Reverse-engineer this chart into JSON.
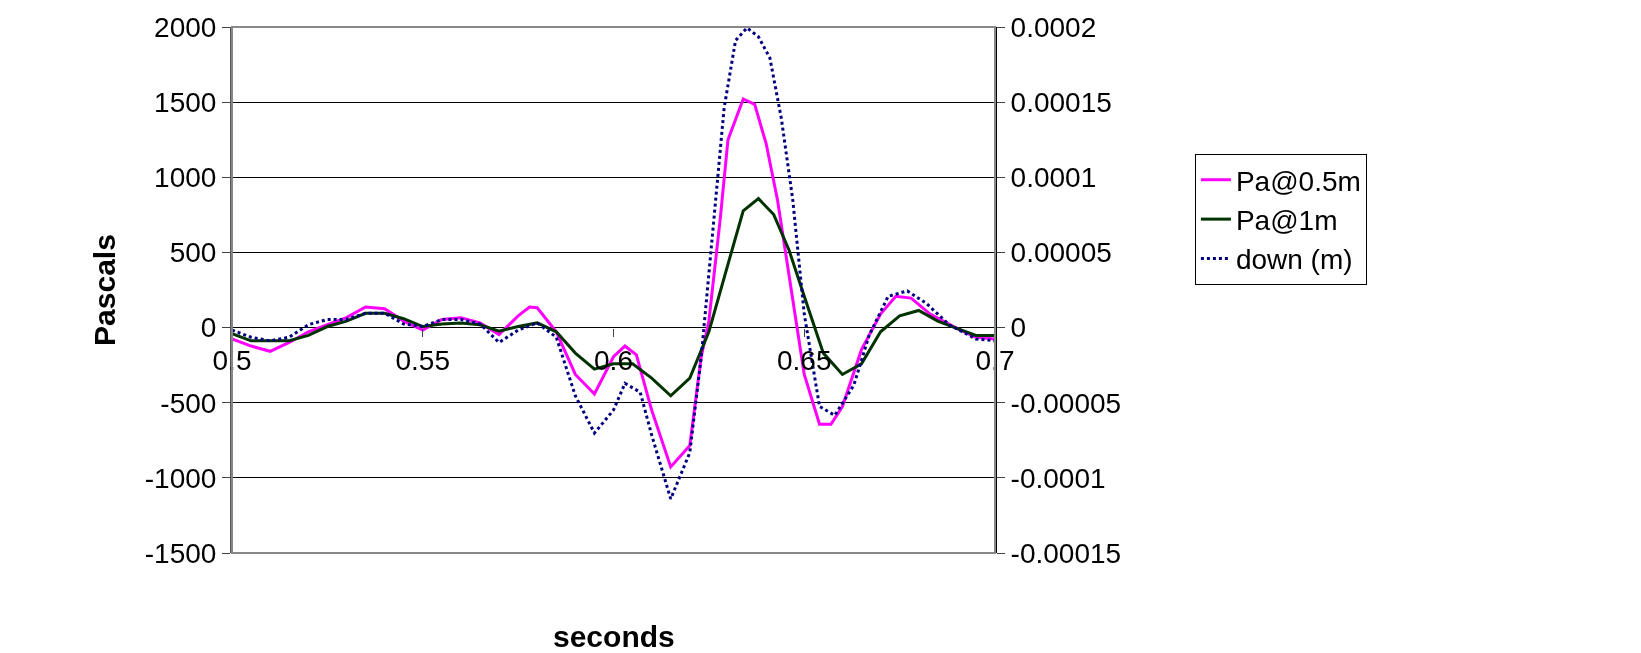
{
  "chart_data": {
    "type": "line",
    "xlabel": "seconds",
    "ylabel": "Pascals",
    "xlim": [
      0.5,
      0.7
    ],
    "xticks": [
      0.5,
      0.55,
      0.6,
      0.65,
      0.7
    ],
    "ylim": [
      -1500,
      2000
    ],
    "yticks": [
      -1500,
      -1000,
      -500,
      0,
      500,
      1000,
      1500,
      2000
    ],
    "y2lim": [
      -0.00015,
      0.0002
    ],
    "y2ticks": [
      {
        "value": -0.00015,
        "label": "-0.00015"
      },
      {
        "value": -0.0001,
        "label": "-0.0001"
      },
      {
        "value": -5e-05,
        "label": "-0.00005"
      },
      {
        "value": 0,
        "label": "0"
      },
      {
        "value": 5e-05,
        "label": "0.00005"
      },
      {
        "value": 0.0001,
        "label": "0.0001"
      },
      {
        "value": 0.00015,
        "label": "0.00015"
      },
      {
        "value": 0.0002,
        "label": "0.0002"
      }
    ],
    "grid": "y",
    "legend": "right",
    "series": [
      {
        "name": "Pa@0.5m",
        "color": "#ff00ff",
        "line_style": "solid",
        "x": [
          0.5,
          0.505,
          0.51,
          0.515,
          0.52,
          0.525,
          0.53,
          0.535,
          0.54,
          0.545,
          0.55,
          0.555,
          0.56,
          0.565,
          0.57,
          0.575,
          0.578,
          0.58,
          0.585,
          0.59,
          0.595,
          0.6,
          0.603,
          0.606,
          0.61,
          0.615,
          0.62,
          0.623,
          0.625,
          0.628,
          0.63,
          0.634,
          0.637,
          0.64,
          0.643,
          0.646,
          0.65,
          0.654,
          0.657,
          0.66,
          0.665,
          0.67,
          0.674,
          0.678,
          0.683,
          0.69,
          0.695,
          0.7
        ],
        "values": [
          -76,
          -123,
          -158,
          -99,
          -28,
          19,
          66,
          137,
          125,
          43,
          -17,
          54,
          66,
          31,
          -47,
          78,
          137,
          132,
          -28,
          -312,
          -442,
          -194,
          -123,
          -182,
          -549,
          -927,
          -785,
          -194,
          43,
          728,
          1249,
          1521,
          1485,
          1225,
          847,
          350,
          -312,
          -643,
          -643,
          -525,
          -147,
          90,
          208,
          196,
          90,
          -5,
          -64,
          -76
        ]
      },
      {
        "name": "Pa@1m",
        "color": "#003300",
        "line_style": "solid",
        "x": [
          0.5,
          0.505,
          0.51,
          0.515,
          0.52,
          0.525,
          0.53,
          0.535,
          0.54,
          0.545,
          0.55,
          0.555,
          0.56,
          0.565,
          0.57,
          0.575,
          0.58,
          0.585,
          0.59,
          0.595,
          0.6,
          0.605,
          0.61,
          0.615,
          0.62,
          0.625,
          0.63,
          0.634,
          0.638,
          0.642,
          0.646,
          0.65,
          0.655,
          0.66,
          0.665,
          0.67,
          0.675,
          0.68,
          0.685,
          0.69,
          0.695,
          0.7
        ],
        "values": [
          -40,
          -88,
          -88,
          -88,
          -52,
          7,
          43,
          95,
          95,
          59,
          7,
          24,
          31,
          19,
          -24,
          7,
          31,
          -28,
          -170,
          -277,
          -241,
          -241,
          -336,
          -454,
          -336,
          -28,
          421,
          776,
          858,
          752,
          516,
          208,
          -170,
          -312,
          -241,
          -28,
          78,
          114,
          43,
          -5,
          -52,
          -52
        ]
      },
      {
        "name": "down (m)",
        "color": "#000080",
        "line_style": "dotted",
        "axis": "y2",
        "x": [
          0.5,
          0.505,
          0.51,
          0.515,
          0.52,
          0.525,
          0.53,
          0.535,
          0.54,
          0.545,
          0.55,
          0.555,
          0.56,
          0.565,
          0.57,
          0.575,
          0.58,
          0.585,
          0.59,
          0.595,
          0.6,
          0.603,
          0.607,
          0.61,
          0.615,
          0.62,
          0.623,
          0.626,
          0.629,
          0.632,
          0.635,
          0.638,
          0.641,
          0.644,
          0.647,
          0.65,
          0.654,
          0.658,
          0.663,
          0.667,
          0.672,
          0.677,
          0.682,
          0.688,
          0.695,
          0.7
        ],
        "values": [
          -1.7e-06,
          -6.4e-06,
          -8.8e-06,
          -6.4e-06,
          1.9e-06,
          5.4e-06,
          5.4e-06,
          9.5e-06,
          9.5e-06,
          2.4e-06,
          7e-07,
          5.4e-06,
          5.4e-06,
          2.4e-06,
          -9.9e-06,
          -1.7e-06,
          3.1e-06,
          -6.4e-06,
          -4.54e-05,
          -7.02e-05,
          -5.49e-05,
          -3.71e-05,
          -4.3e-05,
          -7.14e-05,
          -0.000114,
          -8.32e-05,
          -1.94e-05,
          6.34e-05,
          0.0001462,
          0.0001911,
          0.0001994,
          0.0001935,
          0.0001793,
          0.0001391,
          8.47e-05,
          9e-06,
          -5.25e-05,
          -5.84e-05,
          -3.83e-05,
          -5.2e-06,
          2.08e-05,
          2.44e-05,
          1.61e-05,
          1.9e-06,
          -7.6e-06,
          -8.8e-06
        ]
      }
    ]
  }
}
